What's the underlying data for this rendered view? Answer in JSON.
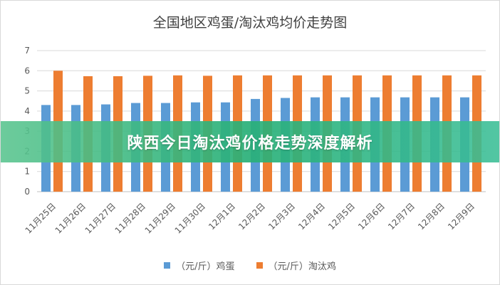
{
  "banner": {
    "text": "陕西今日淘汰鸡价格走势深度解析"
  },
  "chart_data": {
    "type": "bar",
    "title": "全国地区鸡蛋/淘汰鸡均价走势图",
    "categories": [
      "11月25日",
      "11月26日",
      "11月27日",
      "11月28日",
      "11月29日",
      "11月30日",
      "12月1日",
      "12月2日",
      "12月3日",
      "12月4日",
      "12月5日",
      "12月6日",
      "12月7日",
      "12月8日",
      "12月9日"
    ],
    "series": [
      {
        "name": "（元/斤）鸡蛋",
        "color": "#5b9bd5",
        "values": [
          4.3,
          4.3,
          4.33,
          4.4,
          4.4,
          4.43,
          4.43,
          4.6,
          4.65,
          4.68,
          4.68,
          4.68,
          4.68,
          4.68,
          4.68
        ]
      },
      {
        "name": "（元/斤）淘汰鸡",
        "color": "#ed7d31",
        "values": [
          6.0,
          5.73,
          5.73,
          5.75,
          5.77,
          5.75,
          5.77,
          5.77,
          5.77,
          5.77,
          5.77,
          5.77,
          5.77,
          5.77,
          5.77
        ]
      }
    ],
    "ylim": [
      0,
      7
    ],
    "yticks": [
      0,
      1,
      2,
      3,
      4,
      5,
      6,
      7
    ],
    "grid": true,
    "legend": "bottom"
  }
}
